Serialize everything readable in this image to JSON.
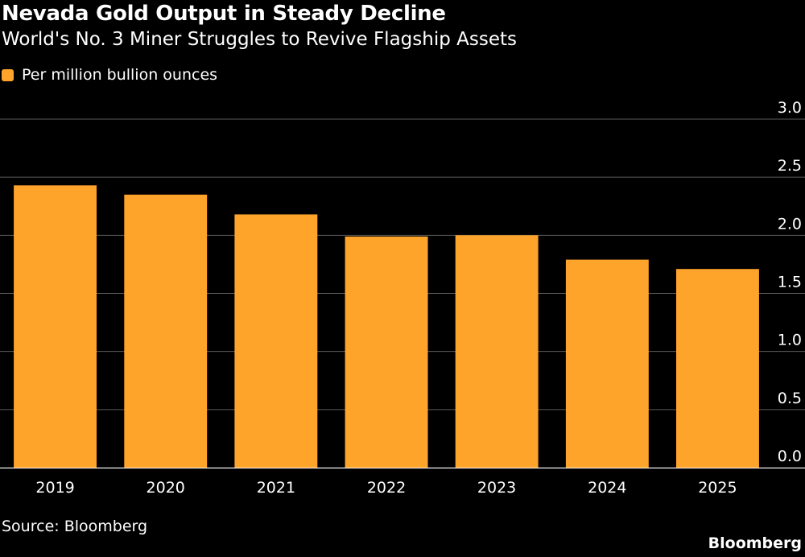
{
  "header": {
    "title": "Nevada Gold Output in Steady Decline",
    "subtitle": "World's No. 3 Miner Struggles to Revive Flagship Assets"
  },
  "footer": {
    "source": "Source: Bloomberg",
    "brand": "Bloomberg"
  },
  "colors": {
    "background": "#000000",
    "bar": "#FFA42B",
    "grid": "#5a5a5a",
    "text": "#ffffff"
  },
  "chart_data": {
    "type": "bar",
    "categories": [
      "2019",
      "2020",
      "2021",
      "2022",
      "2023",
      "2024",
      "2025"
    ],
    "series": [
      {
        "name": "Per million bullion ounces",
        "values": [
          2.43,
          2.35,
          2.18,
          1.99,
          2.0,
          1.79,
          1.71
        ]
      }
    ],
    "yticks": [
      "0.0",
      "0.5",
      "1.0",
      "1.5",
      "2.0",
      "2.5",
      "3.0"
    ],
    "ylim": [
      0,
      3.0
    ],
    "grid": true,
    "legend": "top-left",
    "yaxis_position": "right"
  }
}
